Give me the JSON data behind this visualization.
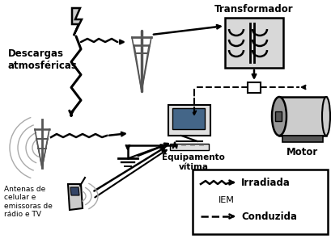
{
  "labels": {
    "descargas": "Descargas\natmosféricas",
    "transformador": "Transformador",
    "motor": "Motor",
    "equipamento": "Equipamento\nvítima",
    "antenas": "Antenas de\ncelular e\nemissoras de\nrádio e TV",
    "irradiada": "Irradiada",
    "iem": "IEM",
    "conduzida": "Conduzida"
  },
  "colors": {
    "black": "#000000",
    "gray": "#888888",
    "mid_gray": "#999999",
    "light_gray": "#cccccc",
    "lighter_gray": "#e0e0e0",
    "white": "#ffffff",
    "dark_gray": "#555555",
    "screen_blue": "#334466",
    "transformer_fill": "#d8d8d8"
  }
}
